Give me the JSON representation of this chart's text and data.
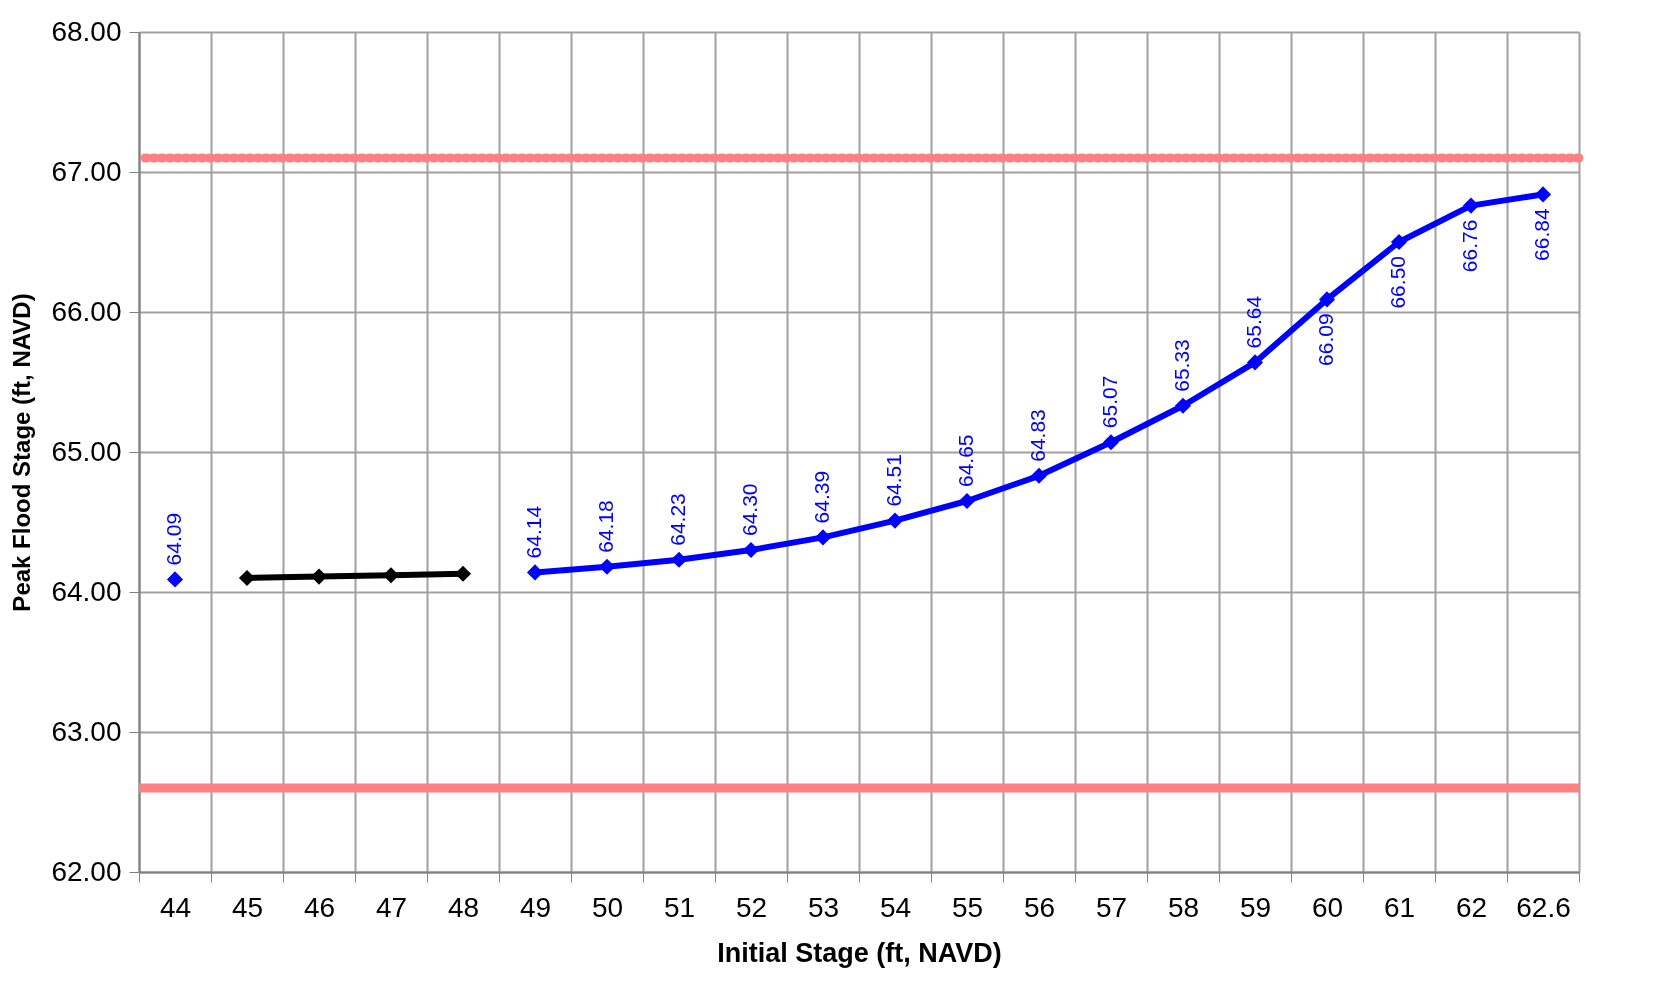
{
  "chart_data": {
    "type": "line",
    "xlabel": "Initial Stage (ft, NAVD)",
    "ylabel": "Peak Flood Stage (ft, NAVD)",
    "categories": [
      "44",
      "45",
      "46",
      "47",
      "48",
      "49",
      "50",
      "51",
      "52",
      "53",
      "54",
      "55",
      "56",
      "57",
      "58",
      "59",
      "60",
      "61",
      "62",
      "62.6"
    ],
    "series": [
      {
        "color": "#000000",
        "values": [
          null,
          64.1,
          64.11,
          64.12,
          64.13,
          null,
          null,
          null,
          null,
          null,
          null,
          null,
          null,
          null,
          null,
          null,
          null,
          null,
          null,
          null
        ]
      },
      {
        "color": "#0000ff",
        "values": [
          64.09,
          null,
          null,
          null,
          null,
          64.14,
          64.18,
          64.23,
          64.3,
          64.39,
          64.51,
          64.65,
          64.83,
          65.07,
          65.33,
          65.64,
          66.09,
          66.5,
          66.76,
          66.84
        ],
        "value_labels": [
          "64.09",
          null,
          null,
          null,
          null,
          "64.14",
          "64.18",
          "64.23",
          "64.30",
          "64.39",
          "64.51",
          "64.65",
          "64.83",
          "65.07",
          "65.33",
          "65.64",
          "66.09",
          "66.50",
          "66.76",
          "66.84"
        ]
      }
    ],
    "ylim": [
      62,
      68
    ],
    "yticks": [
      {
        "value": 62,
        "label": "62.00"
      },
      {
        "value": 63,
        "label": "63.00"
      },
      {
        "value": 64,
        "label": "64.00"
      },
      {
        "value": 65,
        "label": "65.00"
      },
      {
        "value": 66,
        "label": "66.00"
      },
      {
        "value": 67,
        "label": "67.00"
      },
      {
        "value": 68,
        "label": "68.00"
      }
    ],
    "ref_lines": [
      {
        "axis": "y",
        "value": 67.1,
        "color": "#ff8080",
        "line_style": "dotted"
      },
      {
        "axis": "y",
        "value": 62.6,
        "color": "#ff8080",
        "line_style": "solid"
      }
    ],
    "grid": true,
    "legend": false,
    "marker": "diamond",
    "line_style": "solid"
  }
}
